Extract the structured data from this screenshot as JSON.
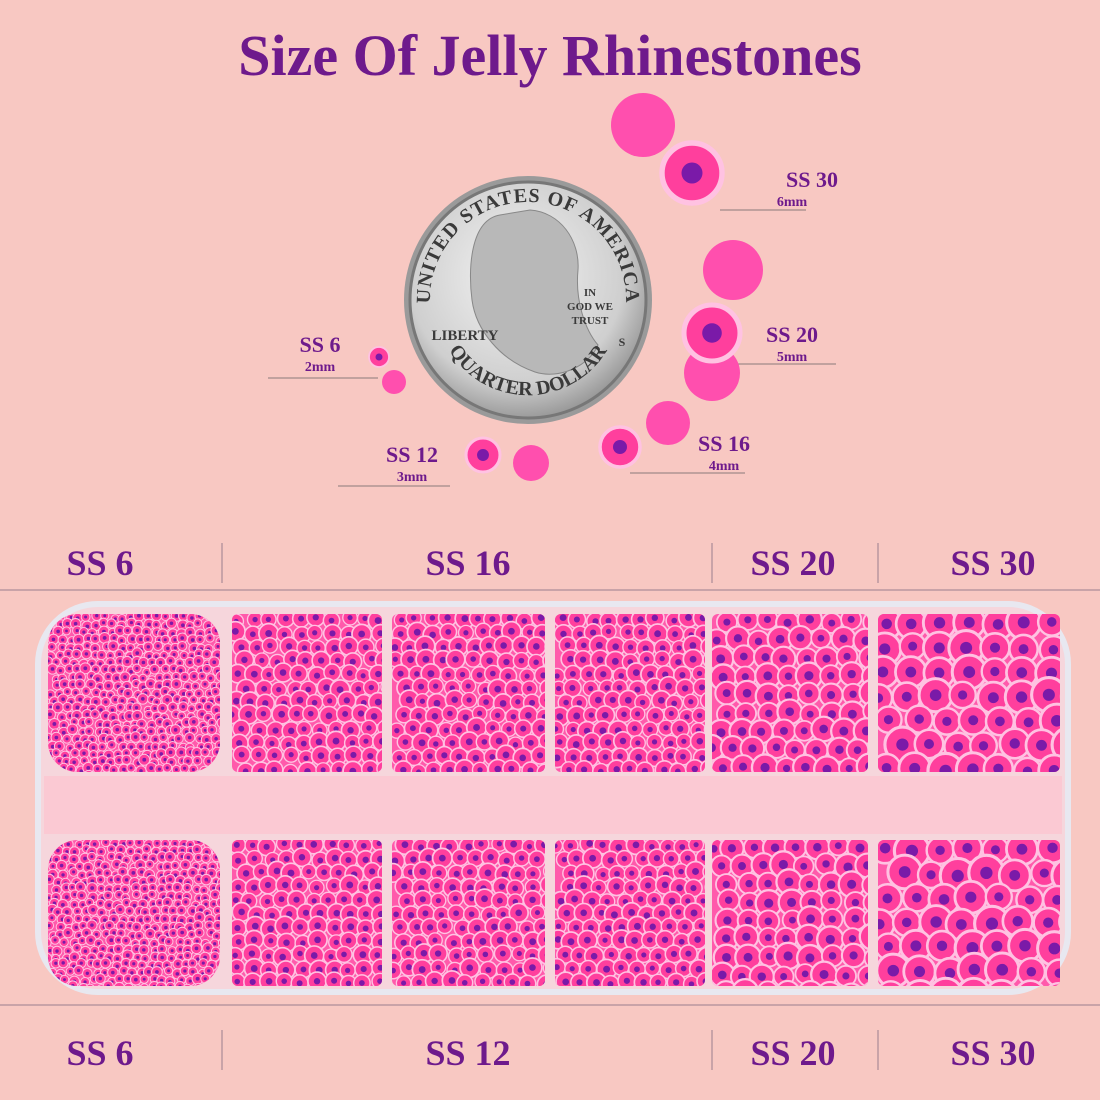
{
  "title": "Size Of Jelly Rhinestones",
  "coin": {
    "top_text": "UNITED STATES OF AMERICA",
    "motto": [
      "IN",
      "GOD WE",
      "TRUST"
    ],
    "left_text": "LIBERTY",
    "bottom_text": "QUARTER DOLLAR",
    "mint_mark": "S"
  },
  "sizes": [
    {
      "label": "SS 30",
      "mm": "6mm"
    },
    {
      "label": "SS 20",
      "mm": "5mm"
    },
    {
      "label": "SS 6",
      "mm": "2mm"
    },
    {
      "label": "SS 12",
      "mm": "3mm"
    },
    {
      "label": "SS 16",
      "mm": "4mm"
    }
  ],
  "top_row": [
    "SS 6",
    "SS 16",
    "SS 20",
    "SS 30"
  ],
  "bottom_row": [
    "SS 6",
    "SS 12",
    "SS 20",
    "SS 30"
  ]
}
